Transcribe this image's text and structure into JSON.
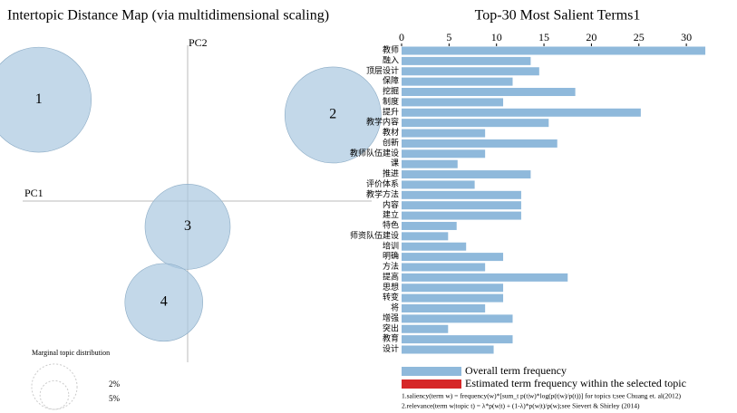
{
  "chart_data": [
    {
      "type": "scatter",
      "title": "Intertopic Distance Map (via multidimensional scaling)",
      "xlabel": "PC1",
      "ylabel": "PC2",
      "labels": [
        "1",
        "2",
        "3",
        "4"
      ],
      "x": [
        -0.244,
        0.238,
        0,
        -0.039
      ],
      "y": [
        0.166,
        0.141,
        -0.042,
        -0.166
      ],
      "sizes": [
        26.8,
        22.4,
        17.6,
        14.7
      ],
      "color": "#a9c8e0",
      "xlim": [
        -0.3,
        0.3
      ],
      "ylim": [
        -0.27,
        0.27
      ],
      "size_legend": {
        "title": "Marginal topic distribution",
        "ticks": [
          {
            "value": 2,
            "label": "2%"
          },
          {
            "value": 5,
            "label": "5%"
          }
        ]
      }
    },
    {
      "type": "barh",
      "title": "Top-30 Most Salient Terms1",
      "categories": [
        "教师",
        "融入",
        "顶层设计",
        "保障",
        "挖掘",
        "制度",
        "提升",
        "教学内容",
        "教材",
        "创新",
        "教师队伍建设",
        "课",
        "推进",
        "评价体系",
        "教学方法",
        "内容",
        "建立",
        "特色",
        "师资队伍建设",
        "培训",
        "明确",
        "方法",
        "提高",
        "思想",
        "转变",
        "将",
        "增强",
        "突出",
        "教育",
        "设计"
      ],
      "series": [
        {
          "name": "Overall term frequency",
          "color": "#8fb9db",
          "values": [
            32.0,
            13.6,
            14.5,
            11.7,
            18.3,
            10.7,
            25.2,
            15.5,
            8.8,
            16.4,
            8.8,
            5.9,
            13.6,
            7.7,
            12.6,
            12.6,
            12.6,
            5.8,
            4.9,
            6.8,
            10.7,
            8.8,
            17.5,
            10.7,
            10.7,
            8.8,
            11.7,
            4.9,
            11.7,
            9.7
          ]
        }
      ],
      "topic_legend": {
        "name": "Estimated term frequency within the selected topic",
        "color": "#d62728"
      },
      "xlim": [
        0,
        34
      ],
      "xticks": [
        0,
        5,
        10,
        15,
        20,
        25,
        30
      ],
      "notes": [
        "1.saliency(term w) = frequency(w)*[sum_t p(t|w)*log(p(t|w)/p(t))] for topics t;see Chuang et. al(2012)",
        "2.relevance(term w|topic t) = λ*p(w|t) + (1-λ)*p(w|t)/p(w);see Sievert & Shirley (2014)"
      ]
    }
  ]
}
